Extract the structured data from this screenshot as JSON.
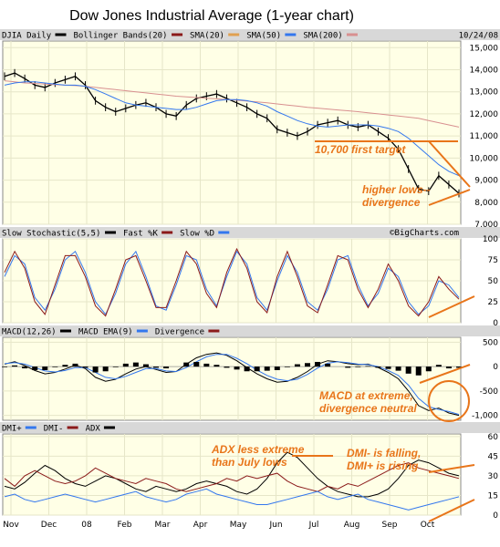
{
  "title": "Dow Jones Industrial Average (1-year chart)",
  "watermark": "©BigCharts.com",
  "chart_data": [
    {
      "panel": "price",
      "type": "line",
      "legend": [
        {
          "label": "DJIA Daily",
          "color": "#000000"
        },
        {
          "label": "Bollinger Bands(20)",
          "color": "#8b1a1a"
        },
        {
          "label": "SMA(20)",
          "color": "#e0a050"
        },
        {
          "label": "SMA(50)",
          "color": "#3377ee"
        },
        {
          "label": "SMA(200)",
          "color": "#d89090"
        }
      ],
      "date": "10/24/08",
      "yticks": [
        "15,000",
        "14,000",
        "13,000",
        "12,000",
        "11,000",
        "10,000",
        "9,000",
        "8,000",
        "7,000"
      ],
      "ylim": [
        7000,
        15300
      ],
      "series": [
        {
          "name": "DJIA Daily",
          "values": [
            13700,
            13850,
            13600,
            13300,
            13200,
            13400,
            13550,
            13700,
            13300,
            12600,
            12300,
            12100,
            12250,
            12400,
            12500,
            12300,
            12000,
            11900,
            12400,
            12700,
            12800,
            12900,
            12700,
            12500,
            12300,
            12000,
            11800,
            11300,
            11150,
            11000,
            11200,
            11500,
            11600,
            11700,
            11500,
            11400,
            11500,
            11200,
            10900,
            10400,
            9500,
            8600,
            8500,
            9200,
            8800,
            8400
          ]
        },
        {
          "name": "SMA(200)",
          "values": [
            13500,
            13450,
            13400,
            13380,
            13350,
            13320,
            13300,
            13280,
            13250,
            13200,
            13150,
            13100,
            13050,
            13000,
            12950,
            12900,
            12850,
            12800,
            12770,
            12740,
            12710,
            12680,
            12650,
            12620,
            12580,
            12540,
            12500,
            12450,
            12400,
            12350,
            12300,
            12260,
            12220,
            12180,
            12140,
            12100,
            12050,
            12000,
            11950,
            11900,
            11850,
            11800,
            11700,
            11600,
            11500,
            11400
          ]
        },
        {
          "name": "SMA(50)",
          "values": [
            13300,
            13400,
            13450,
            13450,
            13400,
            13350,
            13300,
            13300,
            13250,
            13100,
            12900,
            12700,
            12500,
            12400,
            12350,
            12300,
            12250,
            12200,
            12200,
            12300,
            12450,
            12600,
            12650,
            12650,
            12600,
            12500,
            12350,
            12100,
            11900,
            11700,
            11550,
            11450,
            11400,
            11450,
            11500,
            11500,
            11500,
            11450,
            11350,
            11200,
            10900,
            10500,
            10100,
            9700,
            9400,
            9200
          ]
        }
      ],
      "annotations": [
        "10,700 first target",
        "higher lows--",
        "divergence"
      ]
    },
    {
      "panel": "stochastic",
      "type": "line",
      "legend": [
        {
          "label": "Slow Stochastic(5,5)",
          "color": "#000000"
        },
        {
          "label": "Fast %K",
          "color": "#8b1a1a"
        },
        {
          "label": "Slow %D",
          "color": "#3377ee"
        }
      ],
      "yticks": [
        "100",
        "75",
        "50",
        "25",
        "0"
      ],
      "ylim": [
        0,
        100
      ],
      "series": [
        {
          "name": "Slow %D",
          "values": [
            55,
            80,
            70,
            30,
            15,
            40,
            75,
            85,
            60,
            25,
            10,
            35,
            70,
            85,
            55,
            20,
            15,
            45,
            80,
            75,
            40,
            20,
            55,
            85,
            70,
            30,
            15,
            50,
            80,
            60,
            25,
            15,
            40,
            75,
            80,
            45,
            20,
            35,
            65,
            55,
            25,
            10,
            20,
            50,
            45,
            30
          ]
        },
        {
          "name": "Fast %K",
          "values": [
            60,
            85,
            65,
            25,
            10,
            45,
            80,
            80,
            55,
            20,
            8,
            40,
            75,
            80,
            50,
            18,
            18,
            50,
            85,
            70,
            35,
            18,
            60,
            88,
            65,
            25,
            12,
            55,
            85,
            55,
            20,
            12,
            45,
            80,
            75,
            40,
            18,
            40,
            70,
            50,
            20,
            8,
            25,
            55,
            40,
            28
          ]
        }
      ]
    },
    {
      "panel": "macd",
      "type": "line",
      "legend": [
        {
          "label": "MACD(12,26)",
          "color": "#000000"
        },
        {
          "label": "MACD EMA(9)",
          "color": "#3377ee"
        },
        {
          "label": "Divergence",
          "color": "#8b1a1a"
        }
      ],
      "yticks": [
        "500",
        "0",
        "-500",
        "-1,000"
      ],
      "ylim": [
        -1100,
        600
      ],
      "series": [
        {
          "name": "MACD(12,26)",
          "values": [
            50,
            100,
            20,
            -80,
            -150,
            -120,
            -50,
            30,
            -40,
            -220,
            -300,
            -260,
            -150,
            -50,
            0,
            -60,
            -120,
            -100,
            50,
            180,
            250,
            280,
            230,
            120,
            -20,
            -150,
            -250,
            -320,
            -300,
            -220,
            -100,
            50,
            120,
            100,
            60,
            40,
            50,
            -20,
            -120,
            -250,
            -500,
            -800,
            -900,
            -850,
            -950,
            -1000
          ]
        },
        {
          "name": "MACD EMA(9)",
          "values": [
            60,
            80,
            50,
            -20,
            -90,
            -110,
            -80,
            -20,
            -20,
            -120,
            -220,
            -250,
            -200,
            -120,
            -40,
            -40,
            -90,
            -100,
            -20,
            100,
            200,
            250,
            250,
            170,
            60,
            -70,
            -180,
            -260,
            -290,
            -260,
            -160,
            -30,
            70,
            100,
            80,
            50,
            40,
            0,
            -80,
            -180,
            -380,
            -650,
            -820,
            -880,
            -920,
            -980
          ]
        }
      ],
      "annotations": [
        "MACD at extreme,",
        "divergence neutral"
      ]
    },
    {
      "panel": "dmi",
      "type": "line",
      "legend": [
        {
          "label": "DMI+",
          "color": "#3377ee"
        },
        {
          "label": "DMI-",
          "color": "#8b1a1a"
        },
        {
          "label": "ADX",
          "color": "#000000"
        }
      ],
      "yticks": [
        "60",
        "45",
        "30",
        "15",
        "0"
      ],
      "ylim": [
        0,
        62
      ],
      "series": [
        {
          "name": "ADX",
          "values": [
            22,
            20,
            25,
            32,
            38,
            34,
            28,
            24,
            22,
            26,
            30,
            28,
            24,
            20,
            18,
            22,
            20,
            18,
            20,
            24,
            26,
            24,
            22,
            18,
            16,
            20,
            28,
            40,
            48,
            44,
            36,
            28,
            22,
            18,
            16,
            14,
            14,
            16,
            20,
            28,
            38,
            42,
            40,
            36,
            32,
            30
          ]
        },
        {
          "name": "DMI-",
          "values": [
            28,
            22,
            30,
            34,
            30,
            26,
            24,
            26,
            30,
            36,
            32,
            28,
            26,
            24,
            28,
            26,
            24,
            20,
            18,
            20,
            22,
            24,
            28,
            26,
            30,
            28,
            30,
            32,
            26,
            22,
            20,
            18,
            22,
            20,
            24,
            22,
            26,
            30,
            34,
            38,
            40,
            36,
            34,
            32,
            30,
            28
          ]
        },
        {
          "name": "DMI+",
          "values": [
            14,
            16,
            12,
            10,
            12,
            14,
            16,
            14,
            12,
            10,
            12,
            14,
            16,
            18,
            14,
            12,
            10,
            12,
            16,
            18,
            20,
            16,
            14,
            12,
            10,
            8,
            8,
            10,
            12,
            14,
            16,
            18,
            14,
            12,
            14,
            16,
            12,
            10,
            8,
            6,
            4,
            6,
            8,
            10,
            12,
            14
          ]
        }
      ],
      "annotations": [
        "ADX less extreme",
        "than July lows",
        "DMI- is falling,",
        "DMI+ is rising"
      ]
    }
  ],
  "xaxis": {
    "ticks": [
      "Nov",
      "Dec",
      "08",
      "Feb",
      "Mar",
      "Apr",
      "May",
      "Jun",
      "Jul",
      "Aug",
      "Sep",
      "Oct"
    ]
  }
}
